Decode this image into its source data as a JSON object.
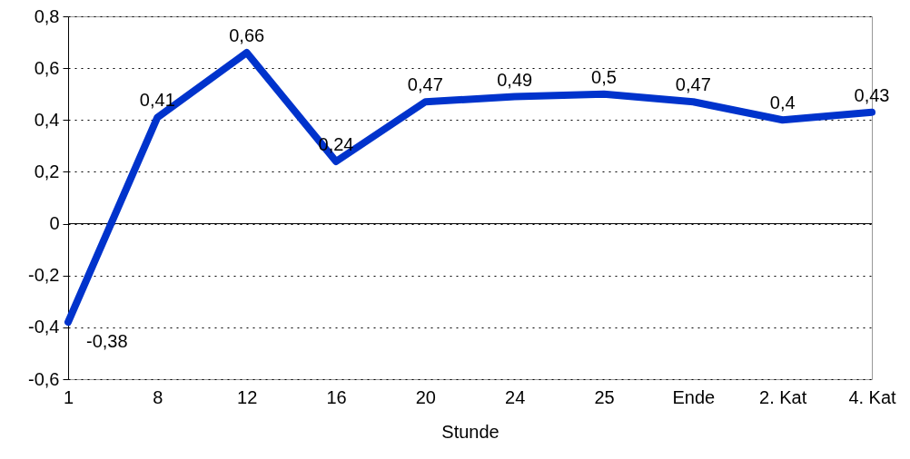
{
  "chart_data": {
    "type": "line",
    "xlabel": "Stunde",
    "categories": [
      "1",
      "8",
      "12",
      "16",
      "20",
      "24",
      "25",
      "Ende",
      "2. Kat",
      "4. Kat"
    ],
    "series": [
      {
        "color": "#0033cc",
        "values": [
          -0.38,
          0.41,
          0.66,
          0.24,
          0.47,
          0.49,
          0.5,
          0.47,
          0.4,
          0.43
        ],
        "value_labels": [
          "-0,38",
          "0,41",
          "0,66",
          "0,24",
          "0,47",
          "0,49",
          "0,5",
          "0,47",
          "0,4",
          "0,43"
        ]
      }
    ],
    "ylim": [
      -0.6,
      0.8
    ],
    "yticks": [
      {
        "value": -0.6,
        "label": "-0,6"
      },
      {
        "value": -0.4,
        "label": "-0,4"
      },
      {
        "value": -0.2,
        "label": "-0,2"
      },
      0,
      {
        "value": 0.2,
        "label": "0,2"
      },
      {
        "value": 0.4,
        "label": "0,4"
      },
      {
        "value": 0.6,
        "label": "0,6"
      },
      {
        "value": 0.8,
        "label": "0,8"
      }
    ],
    "grid": "y",
    "line_style": "solid",
    "marker": "none",
    "ref_lines": [
      {
        "axis": "y",
        "value": 0,
        "color": "#000000"
      }
    ]
  }
}
